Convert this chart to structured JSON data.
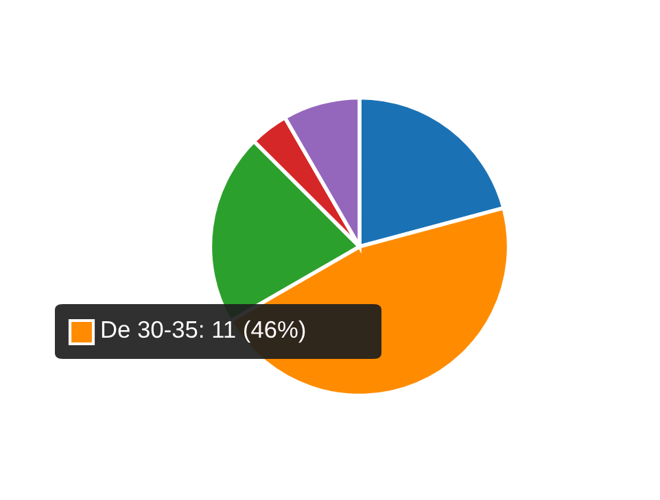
{
  "chart_data": {
    "type": "pie",
    "categories": [
      null,
      null,
      null,
      null,
      null
    ],
    "values": [
      5,
      11,
      5,
      1,
      2
    ],
    "colors": [
      "#1a72b5",
      "#ff8c00",
      "#2ca02c",
      "#d62728",
      "#9467bd"
    ],
    "value_labels": [
      null,
      "De 30-35: 11 (46%)",
      null,
      null,
      null
    ]
  }
}
